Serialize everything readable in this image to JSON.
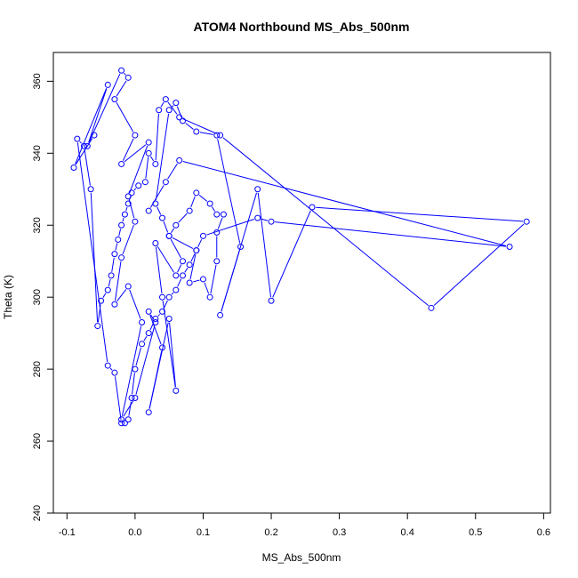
{
  "chart_data": {
    "type": "line",
    "title": "ATOM4 Northbound MS_Abs_500nm",
    "xlabel": "MS_Abs_500nm",
    "ylabel": "Theta (K)",
    "xlim": [
      -0.12,
      0.61
    ],
    "ylim": [
      240,
      368
    ],
    "x_ticks": [
      -0.1,
      0.0,
      0.1,
      0.2,
      0.3,
      0.4,
      0.5,
      0.6
    ],
    "x_tick_labels": [
      "-0.1",
      "0.0",
      "0.1",
      "0.2",
      "0.3",
      "0.4",
      "0.5",
      "0.6"
    ],
    "y_ticks": [
      240,
      260,
      280,
      300,
      320,
      340,
      360
    ],
    "y_tick_labels": [
      "240",
      "260",
      "280",
      "300",
      "320",
      "340",
      "360"
    ],
    "grid": false,
    "legend": "none",
    "series_color": "#0000ff",
    "marker": "open-circle",
    "series": [
      {
        "x": [
          -0.06,
          -0.09,
          -0.04,
          -0.07,
          -0.02,
          -0.01,
          -0.03,
          0.0,
          -0.02,
          0.02,
          -0.01,
          0.0,
          -0.02,
          -0.03,
          -0.01,
          0.01,
          -0.02,
          0.0,
          0.03,
          0.02,
          0.04,
          0.02,
          0.05,
          0.06,
          0.04,
          0.03,
          0.06,
          0.07,
          0.05,
          0.09,
          0.08,
          0.1,
          0.11,
          0.12,
          0.12,
          0.13,
          0.12,
          0.11,
          0.09,
          0.08,
          0.06,
          0.05,
          0.04,
          0.03,
          0.05,
          0.06,
          0.07,
          0.09,
          0.12,
          0.155,
          0.125,
          0.18,
          0.2,
          0.26,
          0.575,
          0.435,
          0.125,
          0.065,
          0.045,
          0.035,
          0.03,
          0.02,
          0.015,
          0.005,
          -0.005,
          -0.01,
          -0.015,
          -0.02,
          -0.025,
          -0.03,
          -0.035,
          -0.04,
          -0.05,
          -0.055,
          -0.065,
          -0.075,
          -0.085,
          -0.04,
          -0.03,
          -0.02,
          -0.015,
          -0.01,
          -0.005,
          0.0,
          0.01,
          0.02,
          0.03,
          0.04,
          0.05,
          0.06,
          0.07,
          0.08,
          0.09,
          0.1,
          0.18,
          0.2,
          0.55,
          0.065,
          0.045,
          0.02
        ],
        "y": [
          345,
          336,
          359,
          342,
          363,
          361,
          355,
          345,
          337,
          343,
          328,
          321,
          311,
          298,
          303,
          293,
          266,
          272,
          293,
          296,
          286,
          268,
          294,
          274,
          300,
          315,
          306,
          310,
          317,
          313,
          304,
          305,
          300,
          310,
          318,
          323,
          323,
          326,
          329,
          324,
          320,
          317,
          322,
          326,
          352,
          354,
          349,
          346,
          345,
          314,
          295,
          330,
          299,
          325,
          321,
          297,
          345,
          350,
          355,
          352,
          337,
          340,
          332,
          331,
          329,
          326,
          323,
          320,
          316,
          312,
          306,
          302,
          299,
          292,
          330,
          342,
          344,
          281,
          279,
          265,
          265,
          266,
          272,
          280,
          287,
          290,
          294,
          296,
          300,
          302,
          306,
          309,
          313,
          317,
          322,
          321,
          314,
          338,
          332,
          324
        ]
      }
    ]
  }
}
